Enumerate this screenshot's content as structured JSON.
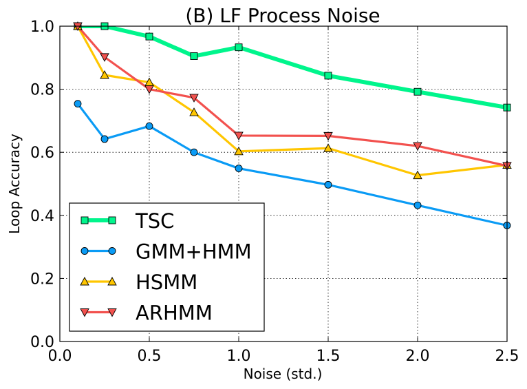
{
  "chart_data": {
    "type": "line",
    "title": "(B) LF Process Noise",
    "xlabel": "Noise (std.)",
    "ylabel": "Loop Accuracy",
    "xlim": [
      0.0,
      2.5
    ],
    "ylim": [
      0.0,
      1.0
    ],
    "xticks": [
      "0.0",
      "0.5",
      "1.0",
      "1.5",
      "2.0",
      "2.5"
    ],
    "yticks": [
      "0.0",
      "0.2",
      "0.4",
      "0.6",
      "0.8",
      "1.0"
    ],
    "grid": true,
    "legend_position": "bottom-left",
    "x": [
      0.1,
      0.25,
      0.5,
      0.75,
      1.0,
      1.5,
      2.0,
      2.5
    ],
    "series": [
      {
        "name": "TSC",
        "color": "#00f58c",
        "marker": "square",
        "values": [
          1.0,
          1.0,
          0.967,
          0.905,
          0.933,
          0.843,
          0.792,
          0.742
        ]
      },
      {
        "name": "GMM+HMM",
        "color": "#0a9bf5",
        "marker": "circle",
        "values": [
          0.754,
          0.642,
          0.683,
          0.6,
          0.549,
          0.497,
          0.432,
          0.368
        ]
      },
      {
        "name": "HSMM",
        "color": "#ffc600",
        "marker": "triangle-up",
        "values": [
          1.0,
          0.845,
          0.822,
          0.727,
          0.603,
          0.613,
          0.527,
          0.56
        ]
      },
      {
        "name": "ARHMM",
        "color": "#f2514e",
        "marker": "triangle-down",
        "values": [
          1.0,
          0.902,
          0.8,
          0.773,
          0.653,
          0.652,
          0.62,
          0.557
        ]
      }
    ]
  }
}
